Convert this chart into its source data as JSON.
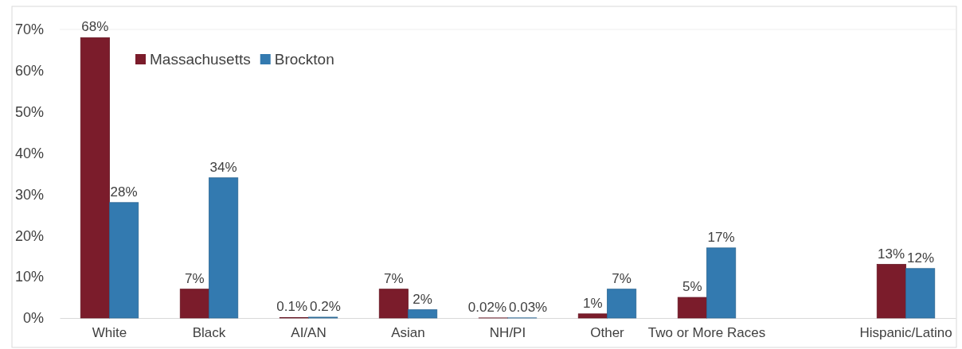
{
  "chart_data": {
    "type": "bar",
    "categories": [
      "White",
      "Black",
      "AI/AN",
      "Asian",
      "NH/PI",
      "Other",
      "Two or More Races",
      null,
      "Hispanic/Latino"
    ],
    "series": [
      {
        "name": "Massachusetts",
        "color": "#7b1c2b",
        "values": [
          68,
          7,
          0.1,
          7,
          0.02,
          1,
          5,
          null,
          13
        ],
        "value_labels": [
          "68%",
          "7%",
          "0.1%",
          "7%",
          "0.02%",
          "1%",
          "5%",
          null,
          "13%"
        ]
      },
      {
        "name": "Brockton",
        "color": "#337ab0",
        "values": [
          28,
          34,
          0.2,
          2,
          0.03,
          7,
          17,
          null,
          12
        ],
        "value_labels": [
          "28%",
          "34%",
          "0.2%",
          "2%",
          "0.03%",
          "7%",
          "17%",
          null,
          "12%"
        ]
      }
    ],
    "ylim": [
      0,
      70
    ],
    "yticks": [
      {
        "value": 0,
        "label": "0%"
      },
      {
        "value": 10,
        "label": "10%"
      },
      {
        "value": 20,
        "label": "20%"
      },
      {
        "value": 30,
        "label": "30%"
      },
      {
        "value": 40,
        "label": "40%"
      },
      {
        "value": 50,
        "label": "50%"
      },
      {
        "value": 60,
        "label": "60%"
      },
      {
        "value": 70,
        "label": "70%"
      }
    ],
    "grid": false,
    "legend": "top left"
  }
}
